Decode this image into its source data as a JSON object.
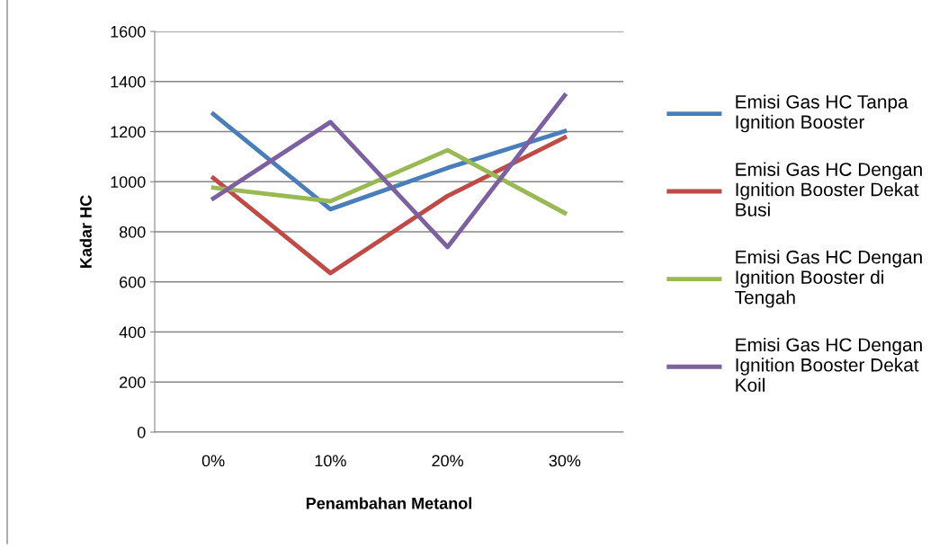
{
  "chart_data": {
    "type": "line",
    "xlabel": "Penambahan Metanol",
    "ylabel": "Kadar HC",
    "categories": [
      "0%",
      "10%",
      "20%",
      "30%"
    ],
    "series": [
      {
        "name": "Emisi Gas HC Tanpa Ignition Booster",
        "color": "#4a7ebb",
        "values": [
          1270,
          890,
          1055,
          1202
        ]
      },
      {
        "name": "Emisi Gas HC Dengan Ignition Booster Dekat Busi",
        "color": "#be4b48",
        "values": [
          1015,
          635,
          943,
          1177
        ]
      },
      {
        "name": "Emisi Gas HC Dengan Ignition Booster di Tengah",
        "color": "#98b954",
        "values": [
          976,
          922,
          1126,
          875
        ]
      },
      {
        "name": "Emisi Gas HC Dengan Ignition Booster Dekat Koil",
        "color": "#7d60a0",
        "values": [
          933,
          1238,
          739,
          1345
        ]
      }
    ],
    "ylim": [
      0,
      1600
    ],
    "yticks": [
      0,
      200,
      400,
      600,
      800,
      1000,
      1200,
      1400,
      1600
    ],
    "grid": "y",
    "legend": "right",
    "marker": "none",
    "line_style": "solid"
  }
}
